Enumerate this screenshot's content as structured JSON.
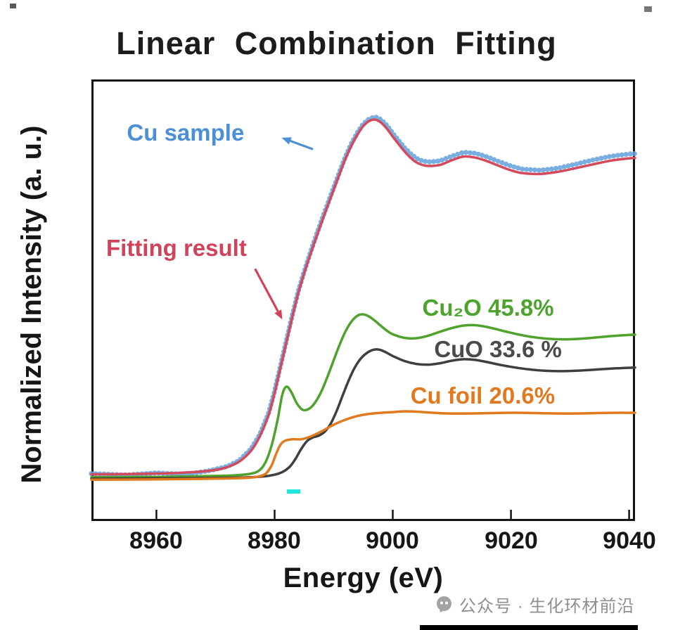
{
  "page": {
    "watermark_text": "公众号 · 生化环材前沿"
  },
  "chart_data": {
    "type": "line",
    "title": "Linear Combination Fitting",
    "xlabel": "Energy (eV)",
    "ylabel": "Normalized Intensity (a. u.)",
    "x_ticks": [
      8960,
      8980,
      9000,
      9020,
      9040
    ],
    "x_tick_labels": [
      "8960",
      "8980",
      "9000",
      "9020",
      "9040"
    ],
    "xlim": [
      8949,
      9041
    ],
    "ylim": [
      -0.109,
      1.111
    ],
    "grid": false,
    "frame_color": "#141414",
    "legend_position": "none",
    "series": [
      {
        "id": "cu-sample",
        "name": "Cu sample",
        "color": "#66a3dc",
        "style": "scatter",
        "dot_radius": 3.6,
        "dot_spacing": 6,
        "points": [
          [
            8949,
            0.022
          ],
          [
            8955,
            0.018
          ],
          [
            8960,
            0.024
          ],
          [
            8965,
            0.02
          ],
          [
            8969,
            0.03
          ],
          [
            8972,
            0.042
          ],
          [
            8974,
            0.058
          ],
          [
            8976,
            0.09
          ],
          [
            8977.5,
            0.13
          ],
          [
            8979,
            0.19
          ],
          [
            8980,
            0.25
          ],
          [
            8981,
            0.32
          ],
          [
            8982,
            0.39
          ],
          [
            8983,
            0.46
          ],
          [
            8984,
            0.525
          ],
          [
            8985,
            0.58
          ],
          [
            8986,
            0.63
          ],
          [
            8987,
            0.678
          ],
          [
            8988,
            0.724
          ],
          [
            8989,
            0.768
          ],
          [
            8990,
            0.812
          ],
          [
            8991,
            0.856
          ],
          [
            8992,
            0.898
          ],
          [
            8993,
            0.934
          ],
          [
            8994,
            0.964
          ],
          [
            8995,
            0.988
          ],
          [
            8996,
            1.002
          ],
          [
            8997,
            1.008
          ],
          [
            8998,
            1.0
          ],
          [
            8999,
            0.984
          ],
          [
            9000,
            0.962
          ],
          [
            9001,
            0.942
          ],
          [
            9002,
            0.922
          ],
          [
            9003,
            0.906
          ],
          [
            9004,
            0.893
          ],
          [
            9005,
            0.886
          ],
          [
            9006,
            0.883
          ],
          [
            9008,
            0.886
          ],
          [
            9010,
            0.899
          ],
          [
            9012,
            0.91
          ],
          [
            9014,
            0.907
          ],
          [
            9016,
            0.897
          ],
          [
            9018,
            0.884
          ],
          [
            9020,
            0.872
          ],
          [
            9022,
            0.863
          ],
          [
            9025,
            0.86
          ],
          [
            9028,
            0.866
          ],
          [
            9031,
            0.877
          ],
          [
            9034,
            0.889
          ],
          [
            9037,
            0.899
          ],
          [
            9040,
            0.905
          ],
          [
            9041,
            0.906
          ]
        ]
      },
      {
        "id": "fitting-result",
        "name": "Fitting result",
        "color": "#d4495b",
        "style": "line",
        "line_width": 3.5,
        "points": [
          [
            8949,
            0.02
          ],
          [
            8956,
            0.021
          ],
          [
            8962,
            0.023
          ],
          [
            8967,
            0.027
          ],
          [
            8970,
            0.032
          ],
          [
            8972,
            0.04
          ],
          [
            8974,
            0.055
          ],
          [
            8976,
            0.085
          ],
          [
            8977.5,
            0.125
          ],
          [
            8979,
            0.185
          ],
          [
            8980,
            0.245
          ],
          [
            8981,
            0.315
          ],
          [
            8982,
            0.385
          ],
          [
            8983,
            0.455
          ],
          [
            8984,
            0.52
          ],
          [
            8985,
            0.575
          ],
          [
            8986,
            0.625
          ],
          [
            8987,
            0.672
          ],
          [
            8988,
            0.718
          ],
          [
            8989,
            0.762
          ],
          [
            8990,
            0.806
          ],
          [
            8991,
            0.85
          ],
          [
            8992,
            0.892
          ],
          [
            8993,
            0.928
          ],
          [
            8994,
            0.958
          ],
          [
            8995,
            0.982
          ],
          [
            8996,
            0.996
          ],
          [
            8997,
            1.0
          ],
          [
            8998,
            0.992
          ],
          [
            8999,
            0.975
          ],
          [
            9000,
            0.953
          ],
          [
            9001,
            0.932
          ],
          [
            9002,
            0.912
          ],
          [
            9003,
            0.895
          ],
          [
            9004,
            0.882
          ],
          [
            9005,
            0.875
          ],
          [
            9006,
            0.872
          ],
          [
            9008,
            0.875
          ],
          [
            9010,
            0.888
          ],
          [
            9012,
            0.898
          ],
          [
            9014,
            0.895
          ],
          [
            9016,
            0.885
          ],
          [
            9018,
            0.872
          ],
          [
            9020,
            0.86
          ],
          [
            9022,
            0.852
          ],
          [
            9025,
            0.85
          ],
          [
            9028,
            0.856
          ],
          [
            9031,
            0.866
          ],
          [
            9034,
            0.877
          ],
          [
            9037,
            0.887
          ],
          [
            9040,
            0.893
          ],
          [
            9041,
            0.894
          ]
        ]
      },
      {
        "id": "cu2o",
        "name": "Cu₂O 45.8%",
        "color": "#4fa22b",
        "style": "line",
        "line_width": 3.5,
        "points": [
          [
            8949,
            0.012
          ],
          [
            8960,
            0.013
          ],
          [
            8968,
            0.015
          ],
          [
            8973,
            0.017
          ],
          [
            8976,
            0.022
          ],
          [
            8977.5,
            0.032
          ],
          [
            8978.5,
            0.055
          ],
          [
            8979.5,
            0.1
          ],
          [
            8980.5,
            0.17
          ],
          [
            8981.3,
            0.24
          ],
          [
            8982,
            0.262
          ],
          [
            8982.8,
            0.248
          ],
          [
            8983.8,
            0.215
          ],
          [
            8984.8,
            0.198
          ],
          [
            8986,
            0.203
          ],
          [
            8987,
            0.222
          ],
          [
            8988,
            0.252
          ],
          [
            8989,
            0.292
          ],
          [
            8990,
            0.335
          ],
          [
            8991,
            0.378
          ],
          [
            8992,
            0.415
          ],
          [
            8993,
            0.442
          ],
          [
            8994,
            0.458
          ],
          [
            8995,
            0.462
          ],
          [
            8996,
            0.456
          ],
          [
            8997,
            0.444
          ],
          [
            8998,
            0.43
          ],
          [
            8999,
            0.417
          ],
          [
            9000,
            0.407
          ],
          [
            9002,
            0.397
          ],
          [
            9004,
            0.396
          ],
          [
            9006,
            0.403
          ],
          [
            9008,
            0.414
          ],
          [
            9010,
            0.424
          ],
          [
            9012,
            0.431
          ],
          [
            9014,
            0.432
          ],
          [
            9016,
            0.427
          ],
          [
            9018,
            0.419
          ],
          [
            9020,
            0.411
          ],
          [
            9023,
            0.401
          ],
          [
            9026,
            0.395
          ],
          [
            9029,
            0.393
          ],
          [
            9032,
            0.395
          ],
          [
            9035,
            0.399
          ],
          [
            9038,
            0.403
          ],
          [
            9041,
            0.406
          ]
        ]
      },
      {
        "id": "cuo",
        "name": "CuO 33.6 %",
        "color": "#3f3f3f",
        "style": "line",
        "line_width": 3.5,
        "points": [
          [
            8949,
            0.008
          ],
          [
            8960,
            0.009
          ],
          [
            8970,
            0.01
          ],
          [
            8976,
            0.012
          ],
          [
            8979,
            0.016
          ],
          [
            8981,
            0.024
          ],
          [
            8982.5,
            0.04
          ],
          [
            8983.5,
            0.062
          ],
          [
            8984.5,
            0.09
          ],
          [
            8985.5,
            0.112
          ],
          [
            8986.5,
            0.122
          ],
          [
            8987.5,
            0.127
          ],
          [
            8988.5,
            0.138
          ],
          [
            8989.5,
            0.16
          ],
          [
            8990.5,
            0.195
          ],
          [
            8991.5,
            0.237
          ],
          [
            8992.5,
            0.278
          ],
          [
            8993.5,
            0.313
          ],
          [
            8994.5,
            0.338
          ],
          [
            8995.5,
            0.354
          ],
          [
            8996.5,
            0.363
          ],
          [
            8997.5,
            0.365
          ],
          [
            8998.5,
            0.36
          ],
          [
            9000,
            0.347
          ],
          [
            9002,
            0.333
          ],
          [
            9004,
            0.325
          ],
          [
            9006,
            0.323
          ],
          [
            9008,
            0.327
          ],
          [
            9010,
            0.334
          ],
          [
            9012,
            0.338
          ],
          [
            9014,
            0.336
          ],
          [
            9016,
            0.33
          ],
          [
            9018,
            0.323
          ],
          [
            9020,
            0.317
          ],
          [
            9023,
            0.31
          ],
          [
            9026,
            0.306
          ],
          [
            9029,
            0.305
          ],
          [
            9032,
            0.307
          ],
          [
            9035,
            0.31
          ],
          [
            9038,
            0.313
          ],
          [
            9041,
            0.315
          ]
        ]
      },
      {
        "id": "cu-foil",
        "name": "Cu foil 20.6%",
        "color": "#e07a1e",
        "style": "line",
        "line_width": 3.5,
        "points": [
          [
            8949,
            0.005
          ],
          [
            8960,
            0.006
          ],
          [
            8970,
            0.008
          ],
          [
            8975,
            0.01
          ],
          [
            8977,
            0.013
          ],
          [
            8978.5,
            0.022
          ],
          [
            8979.5,
            0.045
          ],
          [
            8980.3,
            0.078
          ],
          [
            8981,
            0.102
          ],
          [
            8981.8,
            0.113
          ],
          [
            8983,
            0.117
          ],
          [
            8984.5,
            0.117
          ],
          [
            8986,
            0.124
          ],
          [
            8988,
            0.139
          ],
          [
            8990,
            0.157
          ],
          [
            8992,
            0.171
          ],
          [
            8994,
            0.181
          ],
          [
            8996,
            0.187
          ],
          [
            8998,
            0.19
          ],
          [
            9000,
            0.192
          ],
          [
            9002,
            0.194
          ],
          [
            9004,
            0.193
          ],
          [
            9006,
            0.191
          ],
          [
            9008,
            0.189
          ],
          [
            9010,
            0.188
          ],
          [
            9013,
            0.188
          ],
          [
            9016,
            0.189
          ],
          [
            9019,
            0.19
          ],
          [
            9022,
            0.19
          ],
          [
            9025,
            0.189
          ],
          [
            9028,
            0.188
          ],
          [
            9031,
            0.188
          ],
          [
            9034,
            0.189
          ],
          [
            9037,
            0.19
          ],
          [
            9041,
            0.19
          ]
        ]
      }
    ],
    "annotations": [
      {
        "text": "Cu sample",
        "color": "#4b8fd5",
        "label_x": 8955,
        "label_y": 0.96,
        "arrow": [
          [
            8986.5,
            0.918
          ],
          [
            8981.2,
            0.95
          ]
        ]
      },
      {
        "text": "Fitting result",
        "color": "#d0435a",
        "label_x": 8951.5,
        "label_y": 0.64,
        "arrow": [
          [
            8976.7,
            0.588
          ],
          [
            8981.3,
            0.448
          ]
        ]
      },
      {
        "text": "Cu₂O 45.8%",
        "color": "#4ca42f",
        "label_x": 9005,
        "label_y": 0.475
      },
      {
        "text": "CuO 33.6 %",
        "color": "#4a4a4a",
        "label_x": 9007,
        "label_y": 0.362
      },
      {
        "text": "Cu foil 20.6%",
        "color": "#e2791f",
        "label_x": 9003,
        "label_y": 0.232
      }
    ]
  }
}
